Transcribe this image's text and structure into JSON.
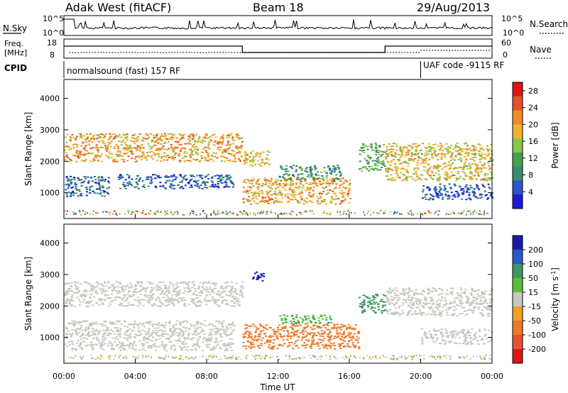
{
  "header": {
    "site_title": "Adak West (fitACF)",
    "beam": "Beam 18",
    "date": "29/Aug/2013"
  },
  "summary_panels": {
    "nsky_label": "N.Sky",
    "nsky_ticks": [
      "10^5",
      "10^0"
    ],
    "nsearch_label": "N.Search",
    "nsearch_ticks": [
      "10^5",
      "10^0"
    ],
    "freq_label": [
      "Freq.",
      "[MHz]"
    ],
    "freq_ticks": [
      "18",
      "8"
    ],
    "nave_label": "Nave",
    "nave_ticks": [
      "60",
      "0"
    ],
    "cpid_label": "CPID",
    "cpid_segments": [
      {
        "text": "normalsound (fast) 157 RF",
        "start_hour": 0,
        "end_hour": 20.0
      },
      {
        "text": "UAF code -9115 RF",
        "start_hour": 20.0,
        "end_hour": 24
      }
    ],
    "freq_segments": [
      {
        "start_hour": 0,
        "end_hour": 10.0,
        "level": "high"
      },
      {
        "start_hour": 10.0,
        "end_hour": 18.0,
        "level": "low"
      },
      {
        "start_hour": 18.0,
        "end_hour": 24,
        "level": "high"
      }
    ]
  },
  "colors": {
    "power_scale": [
      "#1a1adc",
      "#2a55c8",
      "#3a8c6e",
      "#44a24a",
      "#88c84a",
      "#f0b428",
      "#f08c28",
      "#e8502a",
      "#e01414"
    ],
    "velocity_scale": [
      "#1a1aa8",
      "#2a58c8",
      "#3a9860",
      "#5abe3a",
      "#c8c8c0",
      "#f0a028",
      "#f07828",
      "#e85030",
      "#e01414"
    ],
    "ground_scatter": "#c8c8c0"
  },
  "chart_data": [
    {
      "type": "heatmap",
      "title": "Power",
      "ylabel": "Slant Range [km]",
      "xlabel": "",
      "xlim": [
        0,
        24
      ],
      "ylim": [
        180,
        4600
      ],
      "yticks": [
        1000,
        2000,
        3000,
        4000
      ],
      "colorbar": {
        "label": "Power [dB]",
        "ticks": [
          4,
          8,
          12,
          16,
          20,
          24,
          28
        ],
        "range": [
          0,
          30
        ]
      },
      "bands": [
        {
          "t0": 0.0,
          "t1": 10.0,
          "r0": 2000,
          "r1": 2900,
          "value": 20
        },
        {
          "t0": 0.0,
          "t1": 2.5,
          "r0": 900,
          "r1": 1550,
          "value": 6
        },
        {
          "t0": 3.0,
          "t1": 9.5,
          "r0": 1150,
          "r1": 1600,
          "value": 6
        },
        {
          "t0": 10.0,
          "t1": 11.5,
          "r0": 1850,
          "r1": 2350,
          "value": 18
        },
        {
          "t0": 10.0,
          "t1": 16.0,
          "r0": 650,
          "r1": 1500,
          "value": 20
        },
        {
          "t0": 12.0,
          "t1": 15.5,
          "r0": 1400,
          "r1": 1900,
          "value": 10
        },
        {
          "t0": 16.5,
          "t1": 18.0,
          "r0": 1700,
          "r1": 2600,
          "value": 12
        },
        {
          "t0": 18.0,
          "t1": 24.0,
          "r0": 1400,
          "r1": 2600,
          "value": 18
        },
        {
          "t0": 20.0,
          "t1": 24.0,
          "r0": 800,
          "r1": 1300,
          "value": 5
        }
      ]
    },
    {
      "type": "heatmap",
      "title": "Velocity",
      "ylabel": "Slant Range [km]",
      "xlabel": "Time UT",
      "xlim": [
        0,
        24
      ],
      "ylim": [
        180,
        4600
      ],
      "xticks": [
        "00:00",
        "04:00",
        "08:00",
        "12:00",
        "16:00",
        "20:00",
        "00:00"
      ],
      "yticks": [
        1000,
        2000,
        3000,
        4000
      ],
      "colorbar": {
        "label": "Velocity [m s^-1]",
        "ticks": [
          200,
          100,
          50,
          15,
          -15,
          -50,
          -100,
          -200
        ]
      },
      "bands": [
        {
          "t0": 0.0,
          "t1": 10.0,
          "r0": 2000,
          "r1": 2800,
          "value": 0
        },
        {
          "t0": 0.0,
          "t1": 9.5,
          "r0": 600,
          "r1": 1550,
          "value": 0
        },
        {
          "t0": 10.0,
          "t1": 16.5,
          "r0": 650,
          "r1": 1450,
          "value": -40
        },
        {
          "t0": 12.0,
          "t1": 15.0,
          "r0": 1450,
          "r1": 1750,
          "value": 30
        },
        {
          "t0": 10.5,
          "t1": 11.2,
          "r0": 2800,
          "r1": 3100,
          "value": 200
        },
        {
          "t0": 16.5,
          "t1": 18.0,
          "r0": 1800,
          "r1": 2400,
          "value": 40
        },
        {
          "t0": 18.0,
          "t1": 24.0,
          "r0": 1700,
          "r1": 2600,
          "value": 0
        },
        {
          "t0": 20.0,
          "t1": 24.0,
          "r0": 800,
          "r1": 1300,
          "value": 0
        }
      ]
    }
  ],
  "xaxis": {
    "ticks": [
      "00:00",
      "04:00",
      "08:00",
      "12:00",
      "16:00",
      "20:00",
      "00:00"
    ],
    "label": "Time UT"
  }
}
